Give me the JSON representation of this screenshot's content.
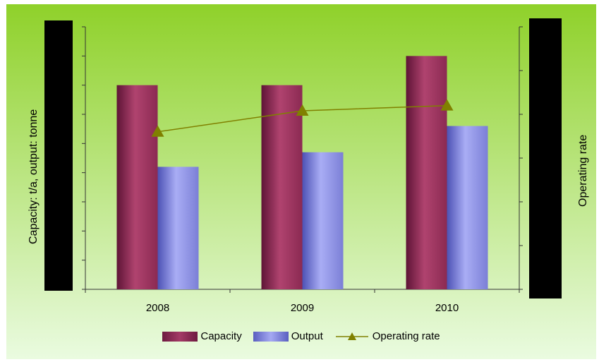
{
  "chart_data": {
    "type": "bar",
    "categories": [
      "2008",
      "2009",
      "2010"
    ],
    "series": [
      {
        "name": "Capacity",
        "type": "bar",
        "axis": "left",
        "color": "#8b2a52",
        "values": [
          7.0,
          7.0,
          8.0
        ]
      },
      {
        "name": "Output",
        "type": "bar",
        "axis": "left",
        "color": "#7b7fd6",
        "values": [
          4.2,
          4.7,
          5.6
        ]
      },
      {
        "name": "Operating rate",
        "type": "line",
        "axis": "right",
        "color": "#808000",
        "values": [
          60,
          68,
          70
        ]
      }
    ],
    "ylabel": "Capacity: t/a, output: tonne",
    "y2label": "Operating rate",
    "ylim": [
      0,
      9
    ],
    "y2lim": [
      0,
      100
    ],
    "left_tick_count": 9,
    "right_tick_count": 6,
    "background_top": "#8fd12a",
    "background_bottom": "#eafbe0",
    "legend_position": "bottom"
  }
}
